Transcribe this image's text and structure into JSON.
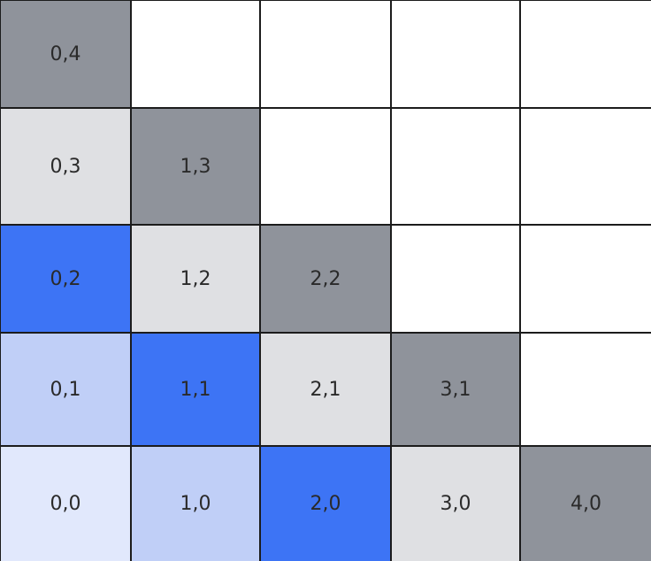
{
  "grid": {
    "rows": [
      [
        {
          "label": "0,4",
          "fill": "#8f939b"
        },
        {
          "fill": "#ffffff"
        },
        {
          "fill": "#ffffff"
        },
        {
          "fill": "#ffffff"
        },
        {
          "fill": "#ffffff"
        }
      ],
      [
        {
          "label": "0,3",
          "fill": "#dfe0e3"
        },
        {
          "label": "1,3",
          "fill": "#8f939b"
        },
        {
          "fill": "#ffffff"
        },
        {
          "fill": "#ffffff"
        },
        {
          "fill": "#ffffff"
        }
      ],
      [
        {
          "label": "0,2",
          "fill": "#3d74f5"
        },
        {
          "label": "1,2",
          "fill": "#dfe0e3"
        },
        {
          "label": "2,2",
          "fill": "#8f939b"
        },
        {
          "fill": "#ffffff"
        },
        {
          "fill": "#ffffff"
        }
      ],
      [
        {
          "label": "0,1",
          "fill": "#c0cff7"
        },
        {
          "label": "1,1",
          "fill": "#3d74f5"
        },
        {
          "label": "2,1",
          "fill": "#dfe0e3"
        },
        {
          "label": "3,1",
          "fill": "#8f939b"
        },
        {
          "fill": "#ffffff"
        }
      ],
      [
        {
          "label": "0,0",
          "fill": "#e1e8fc"
        },
        {
          "label": "1,0",
          "fill": "#c0cff7"
        },
        {
          "label": "2,0",
          "fill": "#3d74f5"
        },
        {
          "label": "3,0",
          "fill": "#dfe0e3"
        },
        {
          "label": "4,0",
          "fill": "#8f939b"
        }
      ]
    ]
  }
}
